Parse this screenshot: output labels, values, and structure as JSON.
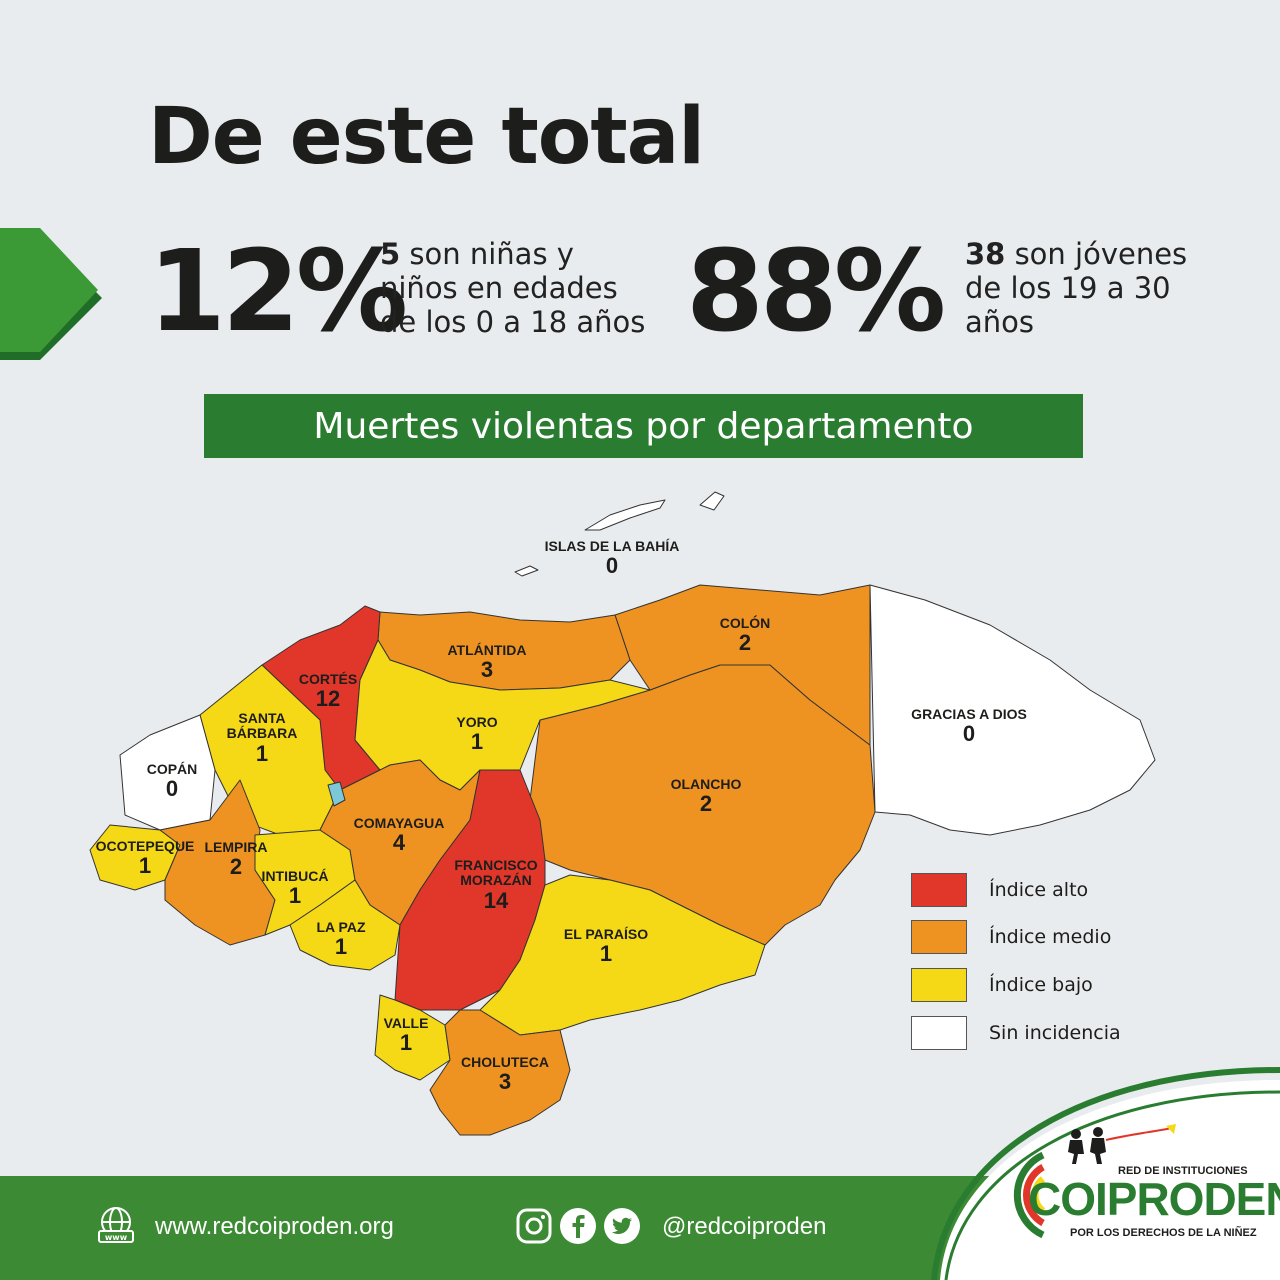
{
  "header": {
    "title": "De este total",
    "stat_left": {
      "percent": "12%",
      "count": "5",
      "text": " son niñas y niños en edades de los 0 a 18 años"
    },
    "stat_right": {
      "percent": "88%",
      "count": "38",
      "text": " son jóvenes de los  19 a 30 años"
    }
  },
  "banner": "Muertes violentas por departamento",
  "map": {
    "departments": [
      {
        "name": "ISLAS DE LA BAHÍA",
        "value": "0",
        "level": "none"
      },
      {
        "name": "COLÓN",
        "value": "2",
        "level": "medium"
      },
      {
        "name": "ATLÁNTIDA",
        "value": "3",
        "level": "medium"
      },
      {
        "name": "CORTÉS",
        "value": "12",
        "level": "high"
      },
      {
        "name": "SANTA BÁRBARA",
        "value": "1",
        "level": "low"
      },
      {
        "name": "YORO",
        "value": "1",
        "level": "low"
      },
      {
        "name": "GRACIAS A DIOS",
        "value": "0",
        "level": "none"
      },
      {
        "name": "COPÁN",
        "value": "0",
        "level": "none"
      },
      {
        "name": "OLANCHO",
        "value": "2",
        "level": "medium"
      },
      {
        "name": "COMAYAGUA",
        "value": "4",
        "level": "medium"
      },
      {
        "name": "OCOTEPEQUE",
        "value": "1",
        "level": "low"
      },
      {
        "name": "LEMPIRA",
        "value": "2",
        "level": "medium"
      },
      {
        "name": "INTIBUCÁ",
        "value": "1",
        "level": "low"
      },
      {
        "name": "FRANCISCO MORAZÁN",
        "value": "14",
        "level": "high"
      },
      {
        "name": "LA PAZ",
        "value": "1",
        "level": "low"
      },
      {
        "name": "EL PARAÍSO",
        "value": "1",
        "level": "low"
      },
      {
        "name": "VALLE",
        "value": "1",
        "level": "low"
      },
      {
        "name": "CHOLUTECA",
        "value": "3",
        "level": "medium"
      }
    ]
  },
  "legend": [
    {
      "label": "Índice alto",
      "color": "#e0372a"
    },
    {
      "label": "Índice medio",
      "color": "#ee9322"
    },
    {
      "label": "Índice bajo",
      "color": "#f5d916"
    },
    {
      "label": "Sin incidencia",
      "color": "#ffffff"
    }
  ],
  "colors": {
    "high": "#e0372a",
    "medium": "#ee9322",
    "low": "#f5d916",
    "none": "#ffffff",
    "green": "#2a7d30"
  },
  "footer": {
    "website_icon": "www-globe-icon",
    "website": "www.redcoiproden.org",
    "social_icons": [
      "instagram-icon",
      "facebook-icon",
      "twitter-icon"
    ],
    "handle": "@redcoiproden"
  },
  "logo": {
    "top_text": "RED DE INSTITUCIONES",
    "name": "COIPRODEN",
    "tagline": "POR LOS DERECHOS DE LA NIÑEZ"
  }
}
